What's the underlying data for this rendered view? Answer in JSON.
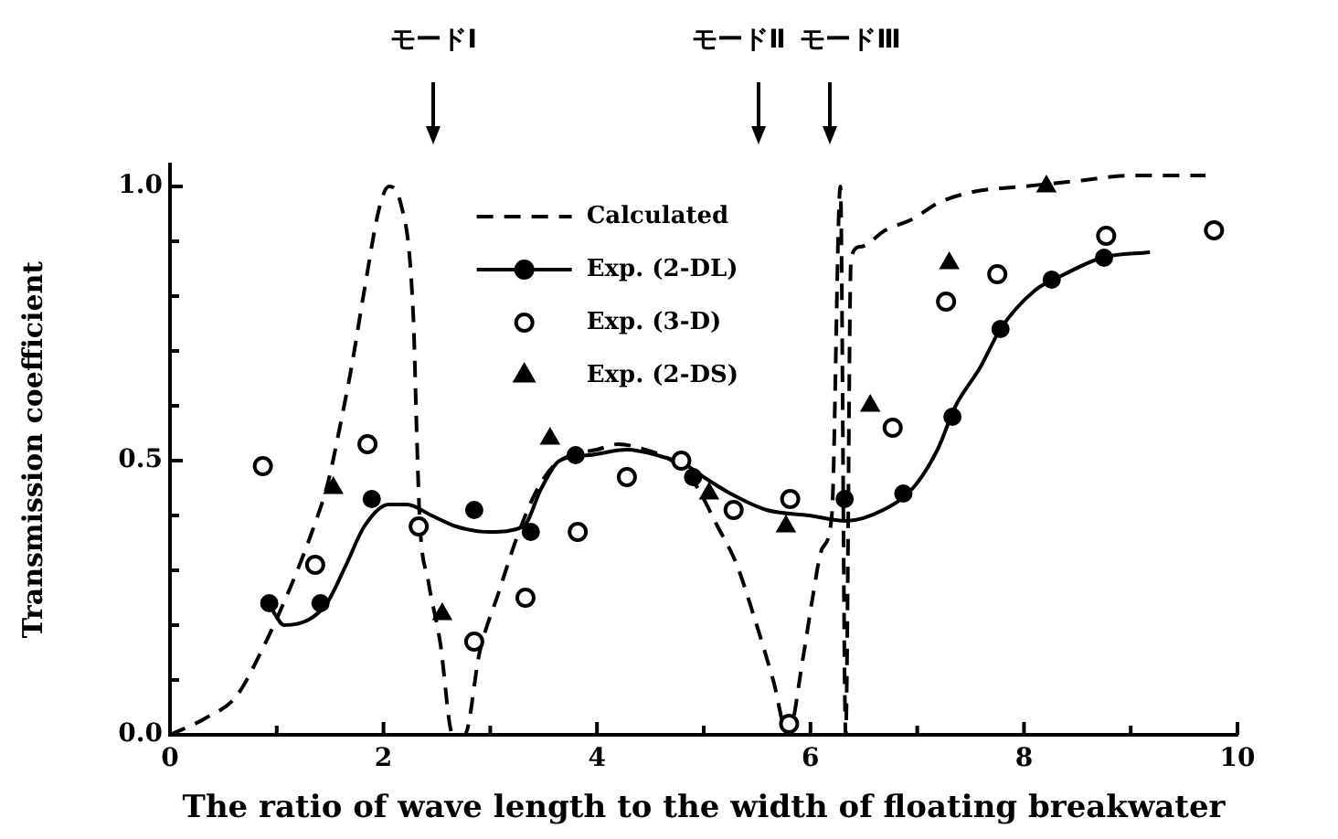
{
  "chart_data": {
    "type": "scatter",
    "xlabel": "The ratio of wave length to the width of floating breakwater",
    "ylabel": "Transmission coefficient",
    "xlim": [
      0,
      10
    ],
    "ylim": [
      0,
      1.04
    ],
    "xticks": [
      0,
      {
        "value": 1,
        "label": null
      },
      2,
      {
        "value": 3,
        "label": null
      },
      4,
      {
        "value": 5,
        "label": null
      },
      6,
      {
        "value": 7,
        "label": null
      },
      8,
      {
        "value": 9,
        "label": null
      },
      10
    ],
    "yticks": [
      {
        "value": 0,
        "label": "0.0"
      },
      {
        "value": 0.1,
        "label": null
      },
      {
        "value": 0.2,
        "label": null
      },
      {
        "value": 0.3,
        "label": null
      },
      {
        "value": 0.4,
        "label": null
      },
      {
        "value": 0.5,
        "label": "0.5"
      },
      {
        "value": 0.6,
        "label": null
      },
      {
        "value": 0.7,
        "label": null
      },
      {
        "value": 0.8,
        "label": null
      },
      {
        "value": 0.9,
        "label": null
      },
      {
        "value": 1,
        "label": "1.0"
      }
    ],
    "legend": "top",
    "annotations": [
      "モードⅠ",
      "モードⅡ",
      "モードⅢ"
    ],
    "series": [
      {
        "name": "Calculated",
        "type": "line",
        "line_style": "dashed",
        "color": "#000000",
        "x": [
          0,
          0.33,
          0.62,
          0.85,
          1.13,
          1.33,
          1.48,
          1.59,
          1.7,
          1.82,
          1.96,
          2.05,
          2.16,
          2.28,
          2.31,
          2.34,
          2.42,
          2.53,
          2.65,
          2.76,
          2.9,
          3.08,
          3.25,
          3.42,
          3.59,
          3.76,
          4.0,
          4.2,
          4.45,
          4.7,
          4.91,
          5.13,
          5.31,
          5.48,
          5.65,
          5.79,
          5.93,
          6.02,
          6.11,
          6.2,
          6.28,
          6.33,
          6.38,
          6.47,
          6.7,
          6.95,
          7.2,
          7.52,
          8.0,
          8.5,
          9.0,
          9.7
        ],
        "values": [
          0,
          0.03,
          0.07,
          0.15,
          0.27,
          0.37,
          0.46,
          0.56,
          0.67,
          0.81,
          0.96,
          1.0,
          0.97,
          0.76,
          0.56,
          0.39,
          0.28,
          0.17,
          0,
          0,
          0.15,
          0.26,
          0.36,
          0.44,
          0.49,
          0.51,
          0.52,
          0.53,
          0.52,
          0.5,
          0.46,
          0.38,
          0.31,
          0.21,
          0.1,
          0,
          0.14,
          0.25,
          0.34,
          0.4,
          1.0,
          0,
          0.87,
          0.89,
          0.92,
          0.94,
          0.97,
          0.99,
          1.0,
          1.01,
          1.02,
          1.02
        ]
      },
      {
        "name": "Exp. (2-DL)",
        "marker": "circle",
        "color": "#000000",
        "x": [
          0.93,
          1.41,
          1.89,
          2.85,
          3.38,
          3.8,
          4.9,
          6.32,
          6.87,
          7.33,
          7.78,
          8.26,
          8.75
        ],
        "values": [
          0.24,
          0.24,
          0.43,
          0.41,
          0.37,
          0.51,
          0.47,
          0.43,
          0.44,
          0.58,
          0.74,
          0.83,
          0.87
        ]
      },
      {
        "type": "line",
        "line_style": "solid",
        "color": "#000000",
        "x": [
          0.95,
          1.07,
          1.3,
          1.47,
          1.65,
          1.82,
          2.05,
          2.22,
          2.45,
          2.68,
          3.0,
          3.31,
          3.48,
          3.65,
          3.93,
          4.28,
          4.56,
          4.85,
          5.0,
          5.25,
          5.59,
          5.99,
          6.33,
          6.68,
          6.96,
          7.19,
          7.36,
          7.59,
          7.78,
          8.1,
          8.38,
          8.73,
          9.18
        ],
        "values": [
          0.23,
          0.2,
          0.21,
          0.24,
          0.31,
          0.38,
          0.42,
          0.42,
          0.4,
          0.38,
          0.37,
          0.38,
          0.45,
          0.5,
          0.51,
          0.52,
          0.51,
          0.49,
          0.47,
          0.44,
          0.41,
          0.4,
          0.39,
          0.41,
          0.45,
          0.52,
          0.6,
          0.67,
          0.74,
          0.81,
          0.84,
          0.87,
          0.88
        ]
      },
      {
        "name": "Exp. (3-D)",
        "marker": "circle",
        "color": "#000000",
        "x": [
          0.87,
          1.36,
          1.85,
          2.33,
          2.85,
          3.33,
          3.82,
          4.28,
          4.79,
          5.28,
          5.8,
          5.81,
          6.77,
          7.27,
          7.75,
          8.77,
          9.78
        ],
        "values": [
          0.49,
          0.31,
          0.53,
          0.38,
          0.17,
          0.25,
          0.37,
          0.47,
          0.5,
          0.41,
          0.02,
          0.43,
          0.56,
          0.79,
          0.84,
          0.91,
          0.92
        ]
      },
      {
        "name": "Exp. (2-DS)",
        "marker": "triangle",
        "color": "#000000",
        "x": [
          1.53,
          2.55,
          3.56,
          5.05,
          5.77,
          6.56,
          7.3,
          8.21
        ],
        "values": [
          0.45,
          0.22,
          0.54,
          0.44,
          0.38,
          0.6,
          0.86,
          1.0
        ]
      }
    ]
  }
}
